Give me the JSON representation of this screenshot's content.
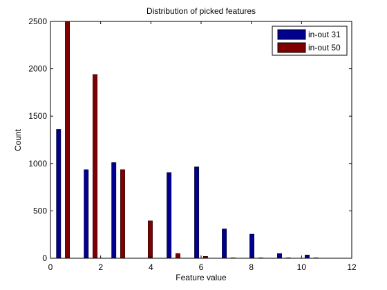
{
  "chart_data": {
    "type": "bar",
    "title": "Distribution of picked features",
    "xlabel": "Feature value",
    "ylabel": "Count",
    "xlim": [
      0,
      12
    ],
    "ylim": [
      0,
      2500
    ],
    "xticks": [
      0,
      2,
      4,
      6,
      8,
      10,
      12
    ],
    "yticks": [
      0,
      500,
      1000,
      1500,
      2000,
      2500
    ],
    "grid": false,
    "legend_position": "top-right",
    "x": [
      0.5,
      1.6,
      2.7,
      3.8,
      4.9,
      6.0,
      7.1,
      8.2,
      9.3,
      10.4
    ],
    "series": [
      {
        "name": "in-out 31",
        "color": "#00008f",
        "values": [
          1360,
          935,
          1010,
          0,
          905,
          965,
          310,
          255,
          50,
          35
        ]
      },
      {
        "name": "in-out 50",
        "color": "#800000",
        "values": [
          2500,
          1940,
          935,
          395,
          50,
          20,
          5,
          5,
          5,
          5
        ]
      }
    ]
  }
}
